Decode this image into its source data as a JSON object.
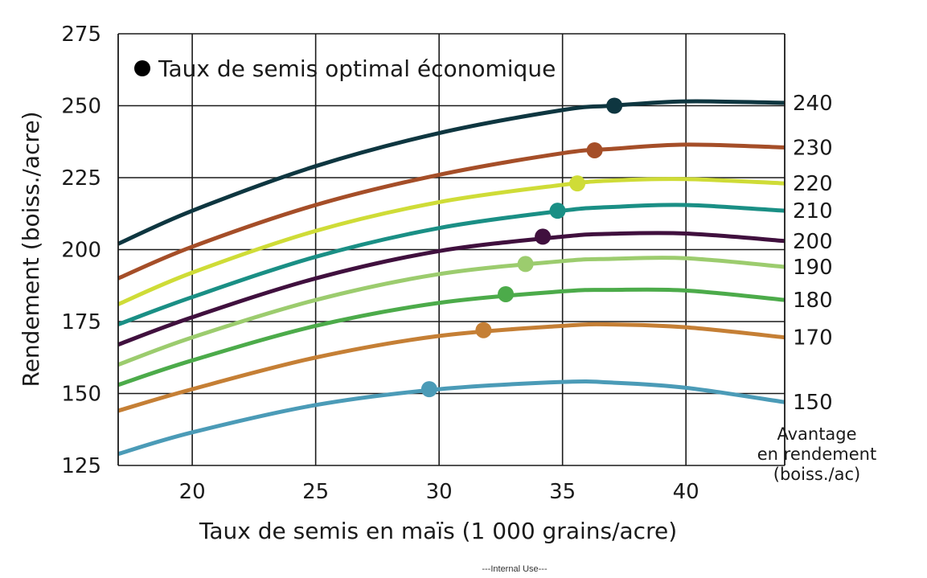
{
  "chart_data": {
    "type": "line",
    "title": "",
    "xlabel": "Taux de semis en maïs (1 000 grains/acre)",
    "ylabel": "Rendement (boiss./acre)",
    "xlim": [
      17,
      44
    ],
    "ylim": [
      125,
      275
    ],
    "xticks": [
      "20",
      "25",
      "30",
      "35",
      "40"
    ],
    "yticks": [
      "125",
      "150",
      "175",
      "200",
      "225",
      "250",
      "275"
    ],
    "legend_label": "Taux de semis optimal économique",
    "legend_placement": "top-left",
    "grid": true,
    "side_axis_title": [
      "Avantage",
      "en rendement",
      "(boiss./ac)"
    ],
    "series": [
      {
        "name": "240",
        "color": "#0e3640",
        "x": [
          17,
          20,
          25,
          30,
          35,
          37,
          40,
          44
        ],
        "y": [
          202,
          213.5,
          229,
          240.5,
          248.5,
          250,
          251.5,
          251
        ],
        "optimal": [
          37.1,
          250
        ]
      },
      {
        "name": "230",
        "color": "#a54e28",
        "x": [
          17,
          20,
          25,
          30,
          35,
          37,
          40,
          44
        ],
        "y": [
          190,
          201,
          215.5,
          226,
          233.5,
          235,
          236.5,
          235.5
        ],
        "optimal": [
          36.3,
          234.5
        ]
      },
      {
        "name": "220",
        "color": "#cfdc37",
        "x": [
          17,
          20,
          25,
          30,
          35,
          37,
          40,
          44
        ],
        "y": [
          181,
          192,
          206.5,
          216.5,
          222.5,
          224,
          224.5,
          223
        ],
        "optimal": [
          35.6,
          223
        ]
      },
      {
        "name": "210",
        "color": "#1a8f85",
        "x": [
          17,
          20,
          25,
          30,
          35,
          37,
          40,
          44
        ],
        "y": [
          174,
          183.5,
          197.5,
          207.5,
          213.5,
          214.8,
          215.5,
          213.5
        ],
        "optimal": [
          34.8,
          213.5
        ]
      },
      {
        "name": "200",
        "color": "#40103e",
        "x": [
          17,
          20,
          25,
          30,
          35,
          37,
          40,
          44
        ],
        "y": [
          167,
          176.5,
          190,
          199.5,
          204.5,
          205.5,
          205.6,
          203
        ],
        "optimal": [
          34.2,
          204.5
        ]
      },
      {
        "name": "190",
        "color": "#9ccc6e",
        "x": [
          17,
          20,
          25,
          30,
          35,
          37,
          40,
          44
        ],
        "y": [
          160,
          169.5,
          182.5,
          191.5,
          196,
          196.8,
          197,
          194
        ],
        "optimal": [
          33.5,
          195
        ]
      },
      {
        "name": "180",
        "color": "#4cab4a",
        "x": [
          17,
          20,
          25,
          30,
          35,
          37,
          40,
          44
        ],
        "y": [
          153,
          161.5,
          173.5,
          181.5,
          185.5,
          186,
          185.8,
          182.5
        ],
        "optimal": [
          32.7,
          184.5
        ]
      },
      {
        "name": "170",
        "color": "#c57f35",
        "x": [
          17,
          20,
          25,
          30,
          35,
          37,
          40,
          44
        ],
        "y": [
          144,
          151.5,
          162.5,
          170,
          173.5,
          174,
          173,
          169.5
        ],
        "optimal": [
          31.8,
          172
        ]
      },
      {
        "name": "150",
        "color": "#4b9bb7",
        "x": [
          17,
          20,
          25,
          30,
          35,
          37,
          40,
          44
        ],
        "y": [
          129,
          136.5,
          146,
          151.5,
          154,
          153.8,
          152,
          147
        ],
        "optimal": [
          29.6,
          151.5
        ]
      }
    ]
  },
  "footer": "---Internal  Use---"
}
